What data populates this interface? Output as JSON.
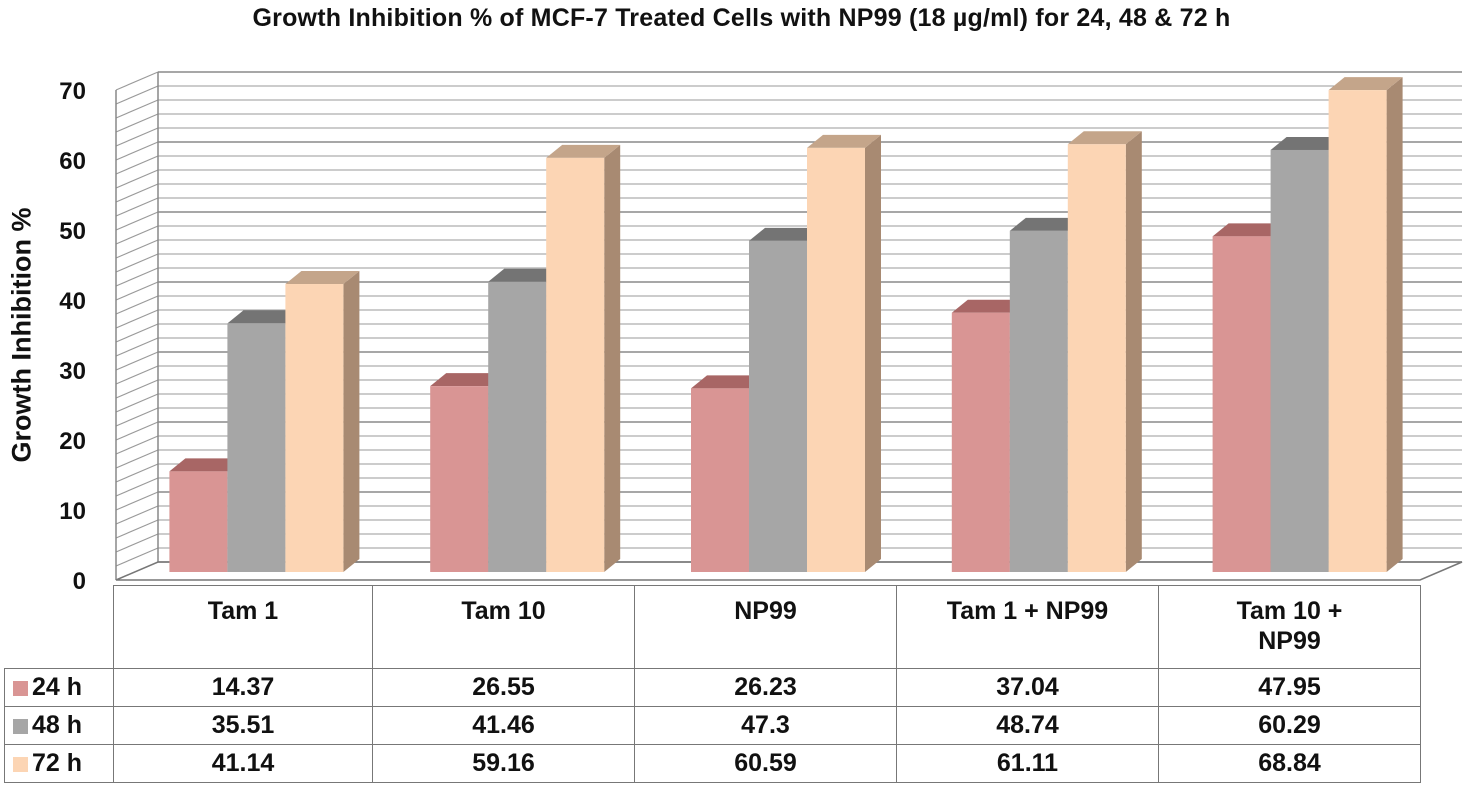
{
  "chart_data": {
    "type": "bar",
    "title": "Growth Inhibition % of MCF-7  Treated Cells  with NP99 (18 µg/ml) for 24, 48 & 72 h",
    "ylabel": "Growth Inhibition %",
    "xlabel": "",
    "ylim": [
      0,
      70
    ],
    "yticks": [
      "0",
      "10",
      "20",
      "30",
      "40",
      "50",
      "60",
      "70"
    ],
    "grid": true,
    "legend": "data-table-left",
    "categories": [
      "Tam 1",
      "Tam 10",
      "NP99",
      "Tam 1 + NP99",
      "Tam 10 + NP99"
    ],
    "category_lines": [
      [
        "Tam 1"
      ],
      [
        "Tam 10"
      ],
      [
        "NP99"
      ],
      [
        "Tam 1 + NP99"
      ],
      [
        "Tam 10 +",
        "NP99"
      ]
    ],
    "series": [
      {
        "name": "24 h",
        "values": [
          14.37,
          26.55,
          26.23,
          37.04,
          47.95
        ],
        "labels": [
          "14.37",
          "26.55",
          "26.23",
          "37.04",
          "47.95"
        ],
        "color": "#d99594",
        "side": "#b07170",
        "top": "#a86665"
      },
      {
        "name": "48 h",
        "values": [
          35.51,
          41.46,
          47.3,
          48.74,
          60.29
        ],
        "labels": [
          "35.51",
          "41.46",
          "47.3",
          "48.74",
          "60.29"
        ],
        "color": "#a6a6a6",
        "side": "#7f7f7f",
        "top": "#747474"
      },
      {
        "name": "72 h",
        "values": [
          41.14,
          59.16,
          60.59,
          61.11,
          68.84
        ],
        "labels": [
          "41.14",
          "59.16",
          "60.59",
          "61.11",
          "68.84"
        ],
        "color": "#fcd5b4",
        "side": "#a88a72",
        "top": "#c4a58a"
      }
    ]
  }
}
